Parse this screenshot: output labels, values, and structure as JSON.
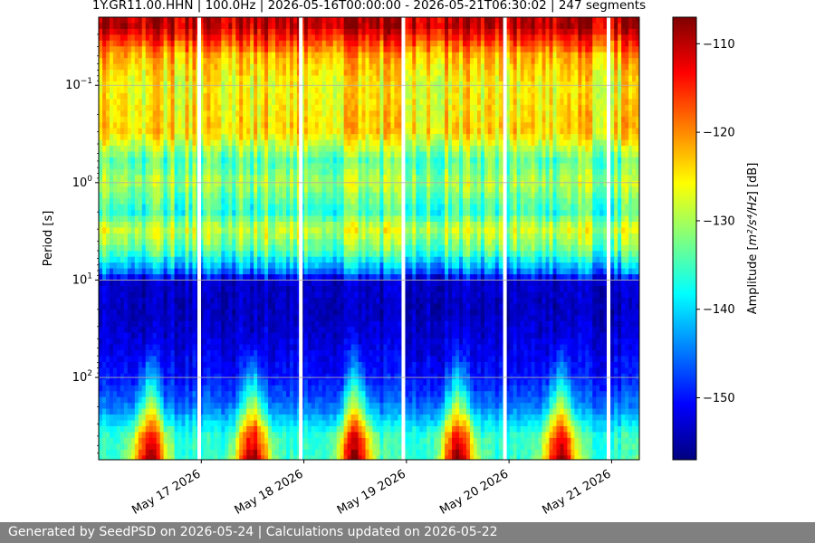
{
  "chart_data": {
    "type": "heatmap",
    "title": "1Y.GR11.00.HHN | 100.0Hz | 2026-05-16T00:00:00 - 2026-05-21T06:30:02 | 247 segments",
    "ylabel": "Period [s]",
    "yscale": "log",
    "y_inverted": true,
    "ylim": [
      0.02,
      700
    ],
    "y_ticks": [
      {
        "label_base": "10",
        "label_exp": "−1",
        "value": 0.1
      },
      {
        "label_base": "10",
        "label_exp": "0",
        "value": 1
      },
      {
        "label_base": "10",
        "label_exp": "1",
        "value": 10
      },
      {
        "label_base": "10",
        "label_exp": "2",
        "value": 100
      }
    ],
    "x_ticks": [
      "May 17 2026",
      "May 18 2026",
      "May 19 2026",
      "May 20 2026",
      "May 21 2026"
    ],
    "xlim_days": [
      0,
      5.27
    ],
    "data_gaps_days": [
      0.98,
      1.97,
      2.97,
      3.96,
      4.97
    ],
    "grid": true,
    "colorbar": {
      "label_prefix": "Amplitude [",
      "label_unit": "m²/s⁴/Hz",
      "label_suffix": "] [dB]",
      "colormap": "jet",
      "range": [
        -157,
        -107
      ],
      "ticks": [
        "−110",
        "−120",
        "−130",
        "−140",
        "−150"
      ],
      "tick_values": [
        -110,
        -120,
        -130,
        -140,
        -150
      ]
    },
    "period_bands": [
      {
        "period": 0.025,
        "amplitude_db": -110
      },
      {
        "period": 0.05,
        "amplitude_db": -122
      },
      {
        "period": 0.1,
        "amplitude_db": -126
      },
      {
        "period": 0.3,
        "amplitude_db": -124
      },
      {
        "period": 0.6,
        "amplitude_db": -134
      },
      {
        "period": 1.0,
        "amplitude_db": -130
      },
      {
        "period": 2.0,
        "amplitude_db": -136
      },
      {
        "period": 3.0,
        "amplitude_db": -128
      },
      {
        "period": 5.0,
        "amplitude_db": -134
      },
      {
        "period": 8.0,
        "amplitude_db": -144
      },
      {
        "period": 10.0,
        "amplitude_db": -153
      },
      {
        "period": 20.0,
        "amplitude_db": -154
      },
      {
        "period": 50.0,
        "amplitude_db": -152
      },
      {
        "period": 100.0,
        "amplitude_db": -150
      },
      {
        "period": 200.0,
        "amplitude_db": -145
      },
      {
        "period": 400.0,
        "amplitude_db": -136
      }
    ]
  },
  "footer": {
    "text": "Generated by SeedPSD on 2026-05-24 | Calculations updated on 2026-05-22"
  }
}
